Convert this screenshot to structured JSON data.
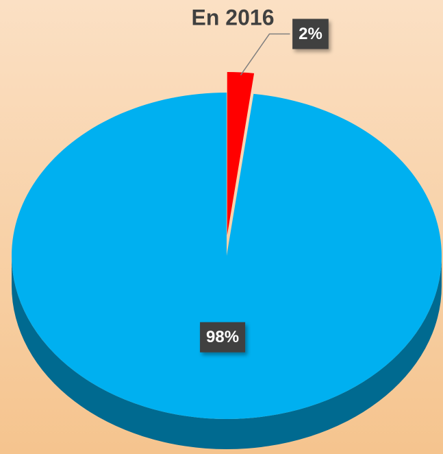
{
  "chart_data": {
    "type": "pie",
    "title": "En 2016",
    "values": [
      2,
      98
    ],
    "value_labels": [
      "2%",
      "98%"
    ],
    "colors": [
      "#ff0000",
      "#00b0f0"
    ]
  }
}
